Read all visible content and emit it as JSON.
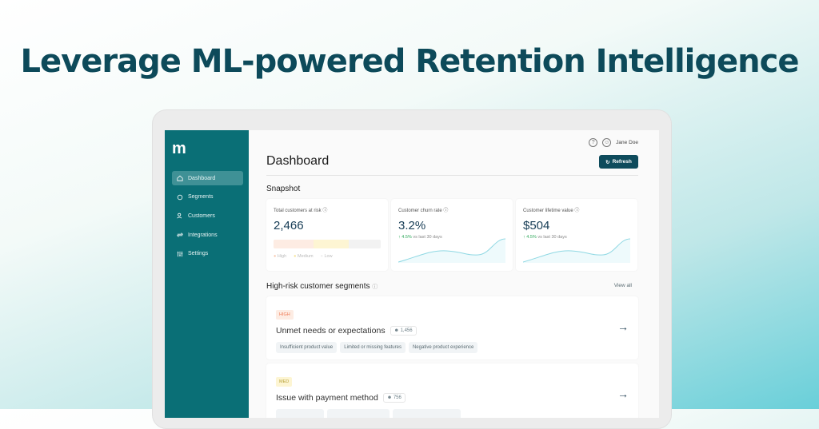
{
  "headline": "Leverage ML-powered Retention Intelligence",
  "app": {
    "logo": "m",
    "user": "Jane Doe",
    "help_icon": "?"
  },
  "sidebar": {
    "items": [
      {
        "label": "Dashboard",
        "icon": "home-icon"
      },
      {
        "label": "Segments",
        "icon": "layers-icon"
      },
      {
        "label": "Customers",
        "icon": "users-icon"
      },
      {
        "label": "Integrations",
        "icon": "sync-icon"
      },
      {
        "label": "Settings",
        "icon": "sliders-icon"
      }
    ]
  },
  "header": {
    "title": "Dashboard",
    "refresh_label": "Refresh"
  },
  "snapshot": {
    "title": "Snapshot",
    "cards": [
      {
        "label": "Total customers at risk",
        "value": "2,466",
        "legend": [
          "High",
          "Medium",
          "Low"
        ],
        "risk_split": {
          "high": 0.37,
          "medium": 0.33,
          "low": 0.3
        }
      },
      {
        "label": "Customer churn rate",
        "value": "3.2%",
        "delta": "4.5%",
        "delta_text": "vs last 30 days"
      },
      {
        "label": "Customer lifetime value",
        "value": "$504",
        "delta": "4.5%",
        "delta_text": "vs last 30 days"
      }
    ]
  },
  "segments": {
    "title": "High-risk customer segments",
    "view_all": "View all",
    "items": [
      {
        "badge": "HIGH",
        "title": "Unmet needs or expectations",
        "count": "1,456",
        "tags": [
          "Insufficient product value",
          "Limited or missing features",
          "Negative product experience"
        ]
      },
      {
        "badge": "MED",
        "title": "Issue with payment method",
        "count": "756",
        "tags": []
      }
    ]
  },
  "colors": {
    "sidebar": "#0a6f76",
    "accent": "#0e4b5c",
    "high": "#fdece3",
    "medium": "#fdf5d3"
  }
}
